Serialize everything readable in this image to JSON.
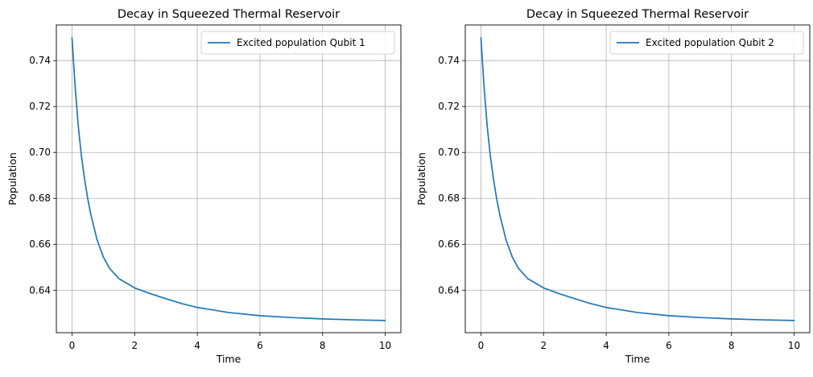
{
  "chart_data": [
    {
      "type": "line",
      "title": "Decay in Squeezed Thermal Reservoir",
      "xlabel": "Time",
      "ylabel": "Population",
      "xlim": [
        -0.5,
        10.5
      ],
      "ylim": [
        0.6215,
        0.7555
      ],
      "xticks": [
        0,
        2,
        4,
        6,
        8,
        10
      ],
      "yticks": [
        0.64,
        0.66,
        0.68,
        0.7,
        0.72,
        0.74
      ],
      "ytick_labels": [
        "0.64",
        "0.66",
        "0.68",
        "0.70",
        "0.72",
        "0.74"
      ],
      "grid": true,
      "legend_position": "top-right",
      "series": [
        {
          "name": "Excited population Qubit 1",
          "color": "#1f77b4",
          "x": [
            0,
            0.1,
            0.2,
            0.3,
            0.4,
            0.5,
            0.6,
            0.8,
            1.0,
            1.2,
            1.5,
            2.0,
            2.5,
            3.0,
            3.5,
            4.0,
            5.0,
            6.0,
            7.0,
            8.0,
            9.0,
            10.0
          ],
          "y": [
            0.75,
            0.7285,
            0.7115,
            0.6985,
            0.6885,
            0.68,
            0.673,
            0.662,
            0.6545,
            0.6495,
            0.645,
            0.641,
            0.6385,
            0.6363,
            0.6342,
            0.6325,
            0.6303,
            0.6289,
            0.6281,
            0.6275,
            0.6271,
            0.6268
          ]
        }
      ]
    },
    {
      "type": "line",
      "title": "Decay in Squeezed Thermal Reservoir",
      "xlabel": "Time",
      "ylabel": "Population",
      "xlim": [
        -0.5,
        10.5
      ],
      "ylim": [
        0.6215,
        0.7555
      ],
      "xticks": [
        0,
        2,
        4,
        6,
        8,
        10
      ],
      "yticks": [
        0.64,
        0.66,
        0.68,
        0.7,
        0.72,
        0.74
      ],
      "ytick_labels": [
        "0.64",
        "0.66",
        "0.68",
        "0.70",
        "0.72",
        "0.74"
      ],
      "grid": true,
      "legend_position": "top-right",
      "series": [
        {
          "name": "Excited population Qubit 2",
          "color": "#1f77b4",
          "x": [
            0,
            0.1,
            0.2,
            0.3,
            0.4,
            0.5,
            0.6,
            0.8,
            1.0,
            1.2,
            1.5,
            2.0,
            2.5,
            3.0,
            3.5,
            4.0,
            5.0,
            6.0,
            7.0,
            8.0,
            9.0,
            10.0
          ],
          "y": [
            0.75,
            0.7285,
            0.7115,
            0.6985,
            0.6885,
            0.68,
            0.673,
            0.662,
            0.6545,
            0.6495,
            0.645,
            0.641,
            0.6385,
            0.6363,
            0.6342,
            0.6325,
            0.6303,
            0.6289,
            0.6281,
            0.6275,
            0.6271,
            0.6268
          ]
        }
      ]
    }
  ]
}
